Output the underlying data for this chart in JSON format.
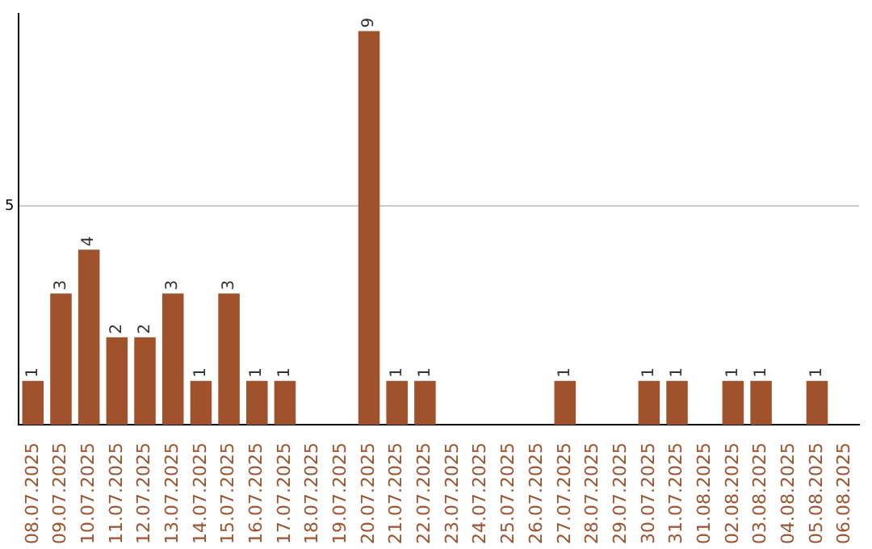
{
  "chart_data": {
    "type": "bar",
    "categories": [
      "08.07.2025",
      "09.07.2025",
      "10.07.2025",
      "11.07.2025",
      "12.07.2025",
      "13.07.2025",
      "14.07.2025",
      "15.07.2025",
      "16.07.2025",
      "17.07.2025",
      "18.07.2025",
      "19.07.2025",
      "20.07.2025",
      "21.07.2025",
      "22.07.2025",
      "23.07.2025",
      "24.07.2025",
      "25.07.2025",
      "26.07.2025",
      "27.07.2025",
      "28.07.2025",
      "29.07.2025",
      "30.07.2025",
      "31.07.2025",
      "01.08.2025",
      "02.08.2025",
      "03.08.2025",
      "04.08.2025",
      "05.08.2025",
      "06.08.2025"
    ],
    "values": [
      1,
      3,
      4,
      2,
      2,
      3,
      1,
      3,
      1,
      1,
      0,
      0,
      9,
      1,
      1,
      0,
      0,
      0,
      0,
      1,
      0,
      0,
      1,
      1,
      0,
      1,
      1,
      0,
      1,
      0
    ],
    "value_labels": [
      "1",
      "3",
      "4",
      "2",
      "2",
      "3",
      "1",
      "3",
      "1",
      "1",
      null,
      null,
      "9",
      "1",
      "1",
      null,
      null,
      null,
      null,
      "1",
      null,
      null,
      "1",
      "1",
      null,
      "1",
      "1",
      null,
      "1",
      null
    ],
    "color": "#a0522d",
    "ylim": [
      0,
      9.4
    ],
    "yticks": [
      5
    ],
    "grid": "y"
  }
}
